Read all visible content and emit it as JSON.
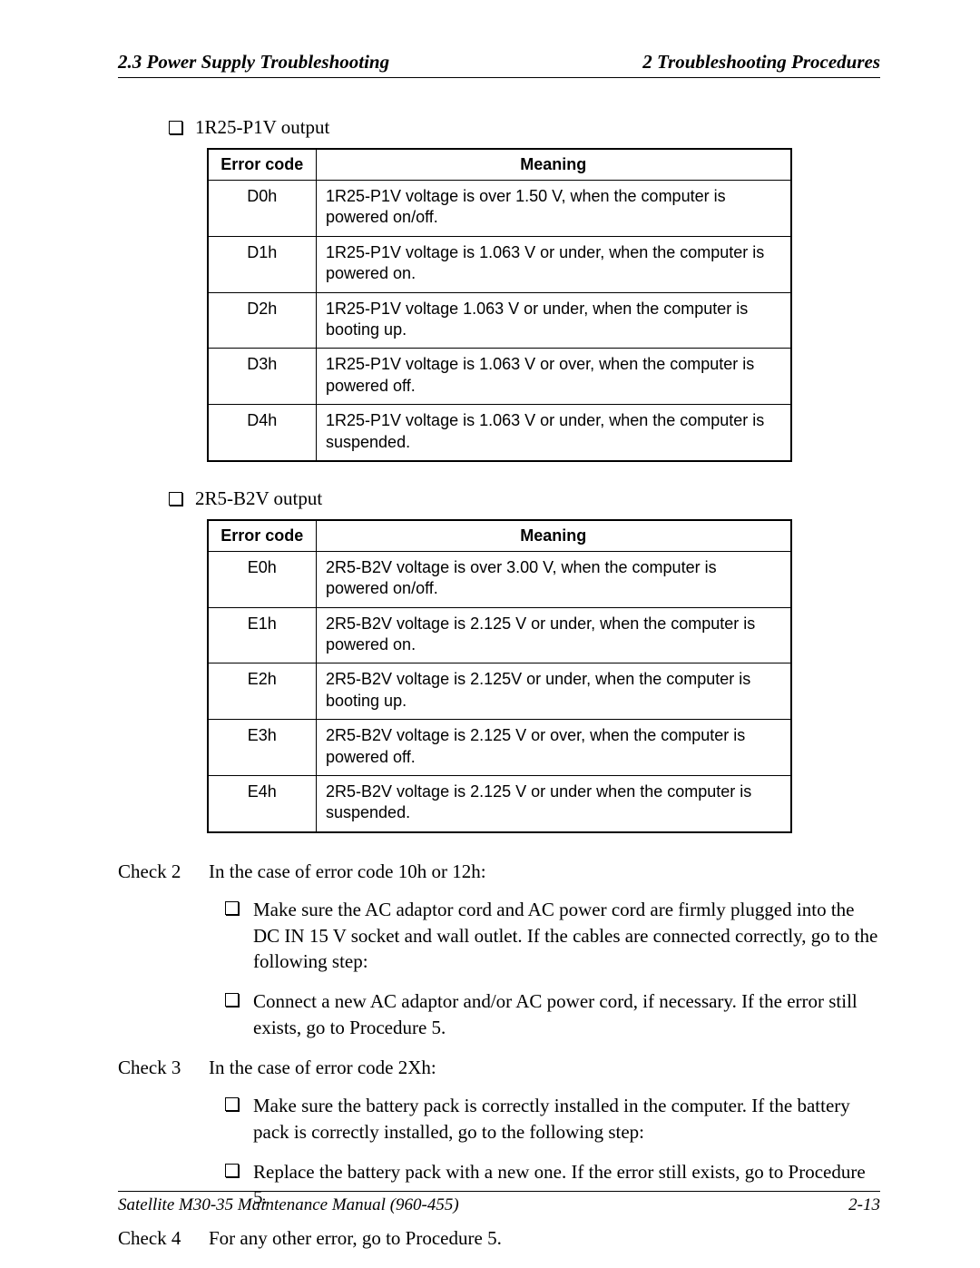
{
  "header": {
    "left": "2.3  Power Supply Troubleshooting",
    "right": "2  Troubleshooting Procedures"
  },
  "sectionA": {
    "heading": "1R25-P1V output",
    "table": {
      "columns": [
        "Error code",
        "Meaning"
      ],
      "rows": [
        [
          "D0h",
          "1R25-P1V voltage is over 1.50 V, when the computer is powered on/off."
        ],
        [
          "D1h",
          "1R25-P1V voltage is 1.063 V or under, when the computer is powered on."
        ],
        [
          "D2h",
          "1R25-P1V voltage 1.063 V or under, when the computer is booting up."
        ],
        [
          "D3h",
          "1R25-P1V voltage is 1.063 V or over, when the computer is powered off."
        ],
        [
          "D4h",
          "1R25-P1V voltage is 1.063 V or under, when the computer is suspended."
        ]
      ]
    }
  },
  "sectionB": {
    "heading": "2R5-B2V output",
    "table": {
      "columns": [
        "Error code",
        "Meaning"
      ],
      "rows": [
        [
          "E0h",
          "2R5-B2V voltage is over 3.00 V, when the computer is powered on/off."
        ],
        [
          "E1h",
          "2R5-B2V voltage is 2.125 V or under, when the computer is powered on."
        ],
        [
          "E2h",
          "2R5-B2V voltage is 2.125V or under, when the computer is booting up."
        ],
        [
          "E3h",
          "2R5-B2V voltage is 2.125 V or over, when the computer is powered off."
        ],
        [
          "E4h",
          "2R5-B2V voltage is 2.125 V or under when the computer is suspended."
        ]
      ]
    }
  },
  "check2": {
    "label": "Check 2",
    "intro": "In the case of error code 10h or 12h:",
    "items": [
      "Make sure the AC adaptor cord and AC power cord are firmly plugged into the DC IN 15 V socket and wall outlet. If the cables are connected correctly, go to the following step:",
      "Connect a new AC adaptor and/or AC power cord, if necessary. If the error still exists, go to Procedure 5."
    ]
  },
  "check3": {
    "label": "Check 3",
    "intro": "In the case of error code 2Xh:",
    "items": [
      "Make sure the battery pack is correctly installed in the computer. If the battery pack is correctly installed, go to the following step:",
      "Replace the battery pack with a new one. If the error still exists, go to Procedure 5."
    ]
  },
  "check4": {
    "label": "Check 4",
    "intro": "For any other error, go to Procedure 5."
  },
  "footer": {
    "left": "Satellite M30-35 Maintenance Manual (960-455)",
    "right": "2-13"
  }
}
